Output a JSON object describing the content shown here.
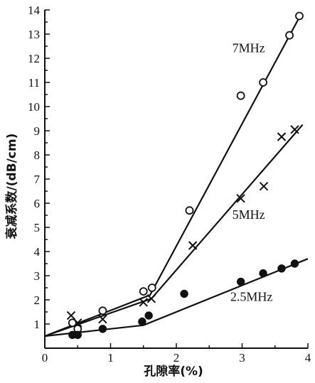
{
  "chart_data": {
    "type": "scatter",
    "xlabel": "孔隙率(%)",
    "ylabel": "衰减系数/(dB/cm)",
    "xlim": [
      0,
      4
    ],
    "ylim": [
      0,
      14
    ],
    "x_ticks": [
      "0",
      "1",
      "2",
      "3",
      "4"
    ],
    "y_ticks": [
      "1",
      "2",
      "3",
      "4",
      "5",
      "6",
      "7",
      "8",
      "9",
      "10",
      "11",
      "12",
      "13",
      "14"
    ],
    "grid": false,
    "series": [
      {
        "name": "7MHz",
        "marker": "open-circle",
        "points": [
          [
            0.42,
            1.05
          ],
          [
            0.5,
            0.8
          ],
          [
            0.88,
            1.55
          ],
          [
            1.5,
            2.35
          ],
          [
            1.63,
            2.5
          ],
          [
            2.2,
            5.7
          ],
          [
            2.98,
            10.45
          ],
          [
            3.32,
            11.0
          ],
          [
            3.72,
            12.95
          ],
          [
            3.87,
            13.75
          ]
        ],
        "fit": [
          [
            0.0,
            0.5
          ],
          [
            1.6,
            2.2
          ],
          [
            3.9,
            13.85
          ]
        ]
      },
      {
        "name": "5MHz",
        "marker": "cross",
        "points": [
          [
            0.4,
            1.35
          ],
          [
            0.5,
            1.05
          ],
          [
            0.88,
            1.2
          ],
          [
            1.5,
            1.9
          ],
          [
            1.62,
            2.05
          ],
          [
            2.25,
            4.25
          ],
          [
            2.98,
            6.2
          ],
          [
            3.33,
            6.7
          ],
          [
            3.6,
            8.75
          ],
          [
            3.8,
            9.05
          ]
        ],
        "fit": [
          [
            0.0,
            0.5
          ],
          [
            1.62,
            2.05
          ],
          [
            3.92,
            9.25
          ]
        ]
      },
      {
        "name": "2.5MHz",
        "marker": "filled-circle",
        "points": [
          [
            0.42,
            0.55
          ],
          [
            0.5,
            0.55
          ],
          [
            0.88,
            0.8
          ],
          [
            1.48,
            1.1
          ],
          [
            1.58,
            1.35
          ],
          [
            2.12,
            2.25
          ],
          [
            2.98,
            2.75
          ],
          [
            3.32,
            3.1
          ],
          [
            3.6,
            3.3
          ],
          [
            3.8,
            3.5
          ]
        ],
        "fit": [
          [
            0.0,
            0.5
          ],
          [
            1.5,
            0.95
          ],
          [
            4.0,
            3.7
          ]
        ]
      }
    ],
    "series_label_positions": {
      "7MHz": [
        2.85,
        12.25
      ],
      "5MHz": [
        2.85,
        5.35
      ],
      "2.5MHz": [
        2.82,
        1.95
      ]
    }
  }
}
